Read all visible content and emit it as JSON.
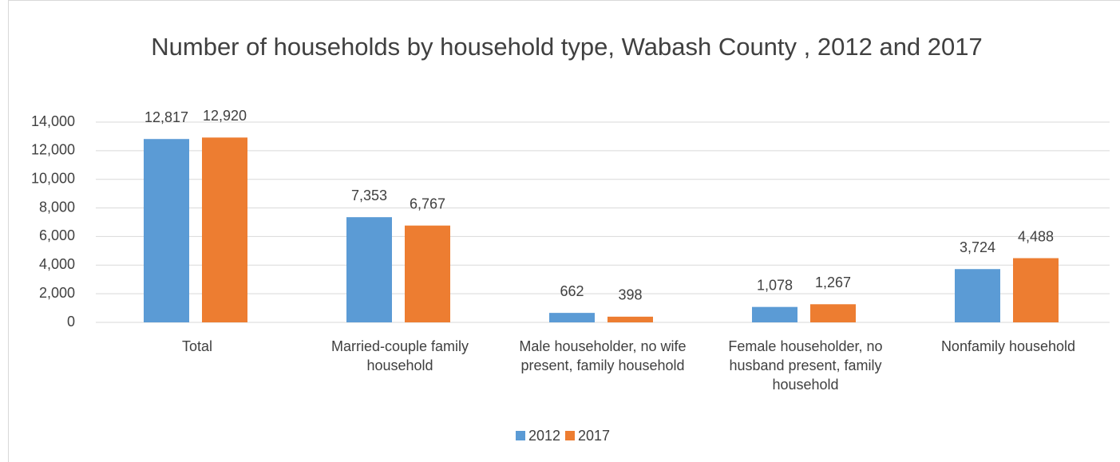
{
  "chart_data": {
    "type": "bar",
    "title": "Number of households by household type, Wabash County , 2012 and 2017",
    "categories": [
      "Total",
      "Married-couple family household",
      "Male householder, no wife present, family household",
      "Female householder, no husband present, family household",
      "Nonfamily household"
    ],
    "series": [
      {
        "name": "2012",
        "color": "#5b9bd5",
        "values": [
          12817,
          7353,
          662,
          1078,
          3724
        ],
        "value_labels": [
          "12,817",
          "7,353",
          "662",
          "1,078",
          "3,724"
        ]
      },
      {
        "name": "2017",
        "color": "#ed7d31",
        "values": [
          12920,
          6767,
          398,
          1267,
          4488
        ],
        "value_labels": [
          "12,920",
          "6,767",
          "398",
          "1,267",
          "4,488"
        ]
      }
    ],
    "ylim": [
      0,
      14000
    ],
    "yticks": [
      0,
      {
        "value": 2000,
        "label": "2,000"
      },
      {
        "value": 4000,
        "label": "4,000"
      },
      {
        "value": 6000,
        "label": "6,000"
      },
      {
        "value": 8000,
        "label": "8,000"
      },
      {
        "value": 10000,
        "label": "10,000"
      },
      {
        "value": 12000,
        "label": "12,000"
      },
      {
        "value": 14000,
        "label": "14,000"
      }
    ],
    "grid": true,
    "legend": "bottom"
  }
}
